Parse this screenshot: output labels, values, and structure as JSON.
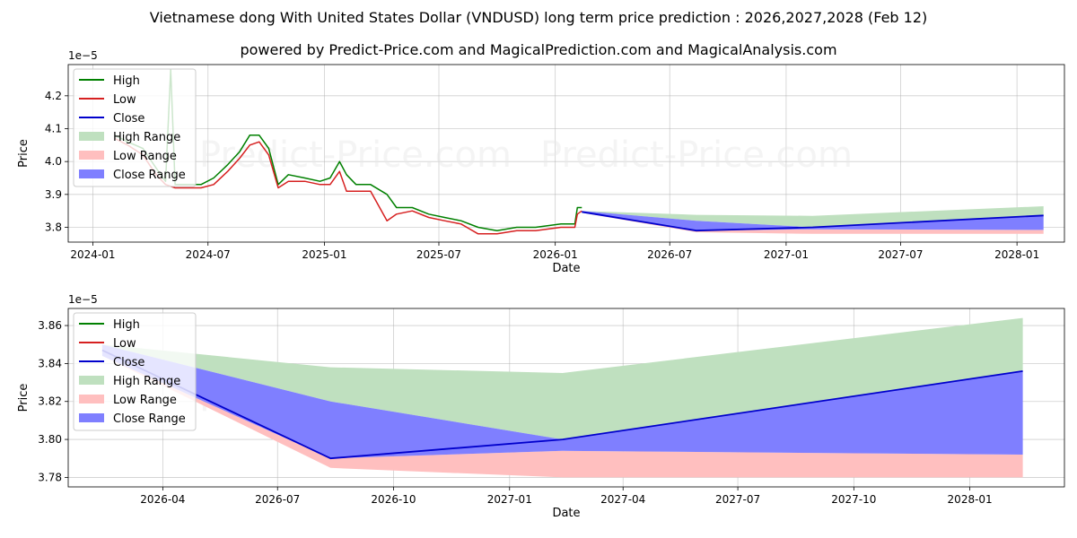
{
  "page": {
    "title": "Vietnamese dong With United States Dollar (VNDUSD) long term price prediction : 2026,2027,2028 (Feb 12)",
    "subtitle": "powered by Predict-Price.com and MagicalPrediction.com and MagicalAnalysis.com",
    "watermark": "Predict-Price.com"
  },
  "colors": {
    "high": "#008000",
    "low": "#d62020",
    "close": "#0000cc",
    "high_range": "#bfe0bf",
    "low_range": "#ffbfbf",
    "close_range": "#7f7fff"
  },
  "chart_data": [
    {
      "type": "line",
      "title": "",
      "xlabel": "Date",
      "ylabel": "Price",
      "offset_text": "1e−5",
      "xlim": [
        "2023-11-23",
        "2028-03-16"
      ],
      "ylim": [
        3.755,
        4.295
      ],
      "xticks": [
        {
          "date": "2024-01-01",
          "label": "2024-01"
        },
        {
          "date": "2024-07-01",
          "label": "2024-07"
        },
        {
          "date": "2025-01-01",
          "label": "2025-01"
        },
        {
          "date": "2025-07-01",
          "label": "2025-07"
        },
        {
          "date": "2026-01-01",
          "label": "2026-01"
        },
        {
          "date": "2026-07-01",
          "label": "2026-07"
        },
        {
          "date": "2027-01-01",
          "label": "2027-01"
        },
        {
          "date": "2027-07-01",
          "label": "2027-07"
        },
        {
          "date": "2028-01-01",
          "label": "2028-01"
        }
      ],
      "yticks": [
        {
          "value": 3.8,
          "label": "3.8"
        },
        {
          "value": 3.9,
          "label": "3.9"
        },
        {
          "value": 4.0,
          "label": "4.0"
        },
        {
          "value": 4.1,
          "label": "4.1"
        },
        {
          "value": 4.2,
          "label": "4.2"
        }
      ],
      "legend_position": "top-left",
      "legend": [
        "High",
        "Low",
        "Close",
        "High Range",
        "Low Range",
        "Close Range"
      ],
      "history_series": [
        {
          "name": "High",
          "points": [
            [
              "2024-02-05",
              4.08
            ],
            [
              "2024-02-25",
              4.06
            ],
            [
              "2024-03-20",
              4.04
            ],
            [
              "2024-04-10",
              3.98
            ],
            [
              "2024-04-25",
              3.94
            ],
            [
              "2024-05-03",
              4.28
            ],
            [
              "2024-05-10",
              3.93
            ],
            [
              "2024-06-01",
              3.93
            ],
            [
              "2024-06-20",
              3.93
            ],
            [
              "2024-07-10",
              3.95
            ],
            [
              "2024-08-01",
              3.99
            ],
            [
              "2024-08-20",
              4.03
            ],
            [
              "2024-09-05",
              4.08
            ],
            [
              "2024-09-20",
              4.08
            ],
            [
              "2024-10-05",
              4.04
            ],
            [
              "2024-10-20",
              3.93
            ],
            [
              "2024-11-05",
              3.96
            ],
            [
              "2024-12-01",
              3.95
            ],
            [
              "2024-12-25",
              3.94
            ],
            [
              "2025-01-10",
              3.95
            ],
            [
              "2025-01-25",
              4.0
            ],
            [
              "2025-02-05",
              3.96
            ],
            [
              "2025-02-20",
              3.93
            ],
            [
              "2025-03-15",
              3.93
            ],
            [
              "2025-04-10",
              3.9
            ],
            [
              "2025-04-25",
              3.86
            ],
            [
              "2025-05-20",
              3.86
            ],
            [
              "2025-06-15",
              3.84
            ],
            [
              "2025-07-10",
              3.83
            ],
            [
              "2025-08-05",
              3.82
            ],
            [
              "2025-09-01",
              3.8
            ],
            [
              "2025-10-01",
              3.79
            ],
            [
              "2025-11-01",
              3.8
            ],
            [
              "2025-12-01",
              3.8
            ],
            [
              "2026-01-10",
              3.81
            ],
            [
              "2026-02-01",
              3.81
            ],
            [
              "2026-02-05",
              3.86
            ],
            [
              "2026-02-12",
              3.86
            ]
          ]
        },
        {
          "name": "Low",
          "points": [
            [
              "2024-02-05",
              4.07
            ],
            [
              "2024-02-25",
              4.05
            ],
            [
              "2024-03-20",
              4.02
            ],
            [
              "2024-04-10",
              3.96
            ],
            [
              "2024-04-25",
              3.93
            ],
            [
              "2024-05-10",
              3.92
            ],
            [
              "2024-06-01",
              3.92
            ],
            [
              "2024-06-20",
              3.92
            ],
            [
              "2024-07-10",
              3.93
            ],
            [
              "2024-08-01",
              3.97
            ],
            [
              "2024-08-20",
              4.01
            ],
            [
              "2024-09-05",
              4.05
            ],
            [
              "2024-09-20",
              4.06
            ],
            [
              "2024-10-05",
              4.02
            ],
            [
              "2024-10-20",
              3.92
            ],
            [
              "2024-11-05",
              3.94
            ],
            [
              "2024-12-01",
              3.94
            ],
            [
              "2024-12-25",
              3.93
            ],
            [
              "2025-01-10",
              3.93
            ],
            [
              "2025-01-25",
              3.97
            ],
            [
              "2025-02-05",
              3.91
            ],
            [
              "2025-02-20",
              3.91
            ],
            [
              "2025-03-15",
              3.91
            ],
            [
              "2025-04-10",
              3.82
            ],
            [
              "2025-04-25",
              3.84
            ],
            [
              "2025-05-20",
              3.85
            ],
            [
              "2025-06-15",
              3.83
            ],
            [
              "2025-07-10",
              3.82
            ],
            [
              "2025-08-05",
              3.81
            ],
            [
              "2025-09-01",
              3.78
            ],
            [
              "2025-10-01",
              3.78
            ],
            [
              "2025-11-01",
              3.79
            ],
            [
              "2025-12-01",
              3.79
            ],
            [
              "2026-01-10",
              3.8
            ],
            [
              "2026-02-01",
              3.8
            ],
            [
              "2026-02-05",
              3.84
            ],
            [
              "2026-02-12",
              3.85
            ]
          ]
        }
      ],
      "forecast": {
        "dates": [
          "2026-02-12",
          "2026-08-12",
          "2027-02-12",
          "2028-02-12"
        ],
        "close": [
          3.847,
          3.79,
          3.8,
          3.836
        ],
        "high_range_upper": [
          3.85,
          3.838,
          3.835,
          3.864
        ],
        "low_range_lower": [
          3.844,
          3.785,
          3.78,
          3.78
        ],
        "close_range_upper": [
          3.85,
          3.82,
          3.8,
          3.836
        ],
        "close_range_lower": [
          3.844,
          3.79,
          3.794,
          3.792
        ]
      }
    },
    {
      "type": "line",
      "title": "",
      "xlabel": "Date",
      "ylabel": "Price",
      "offset_text": "1e−5",
      "xlim": [
        "2026-01-16",
        "2028-03-16"
      ],
      "ylim": [
        3.775,
        3.869
      ],
      "xticks": [
        {
          "date": "2026-04-01",
          "label": "2026-04"
        },
        {
          "date": "2026-07-01",
          "label": "2026-07"
        },
        {
          "date": "2026-10-01",
          "label": "2026-10"
        },
        {
          "date": "2027-01-01",
          "label": "2027-01"
        },
        {
          "date": "2027-04-01",
          "label": "2027-04"
        },
        {
          "date": "2027-07-01",
          "label": "2027-07"
        },
        {
          "date": "2027-10-01",
          "label": "2027-10"
        },
        {
          "date": "2028-01-01",
          "label": "2028-01"
        }
      ],
      "yticks": [
        {
          "value": 3.78,
          "label": "3.78"
        },
        {
          "value": 3.8,
          "label": "3.80"
        },
        {
          "value": 3.82,
          "label": "3.82"
        },
        {
          "value": 3.84,
          "label": "3.84"
        },
        {
          "value": 3.86,
          "label": "3.86"
        }
      ],
      "legend_position": "top-left",
      "legend": [
        "High",
        "Low",
        "Close",
        "High Range",
        "Low Range",
        "Close Range"
      ],
      "forecast": {
        "dates": [
          "2026-02-12",
          "2026-08-12",
          "2027-02-12",
          "2028-02-12"
        ],
        "close": [
          3.847,
          3.79,
          3.8,
          3.836
        ],
        "high_line": [
          3.849,
          null,
          null,
          null
        ],
        "low_line": [
          3.845,
          null,
          null,
          null
        ],
        "high_range_upper": [
          3.85,
          3.838,
          3.835,
          3.864
        ],
        "low_range_lower": [
          3.844,
          3.785,
          3.78,
          3.78
        ],
        "close_range_upper": [
          3.85,
          3.82,
          3.8,
          3.836
        ],
        "close_range_lower": [
          3.844,
          3.79,
          3.794,
          3.792
        ]
      }
    }
  ]
}
